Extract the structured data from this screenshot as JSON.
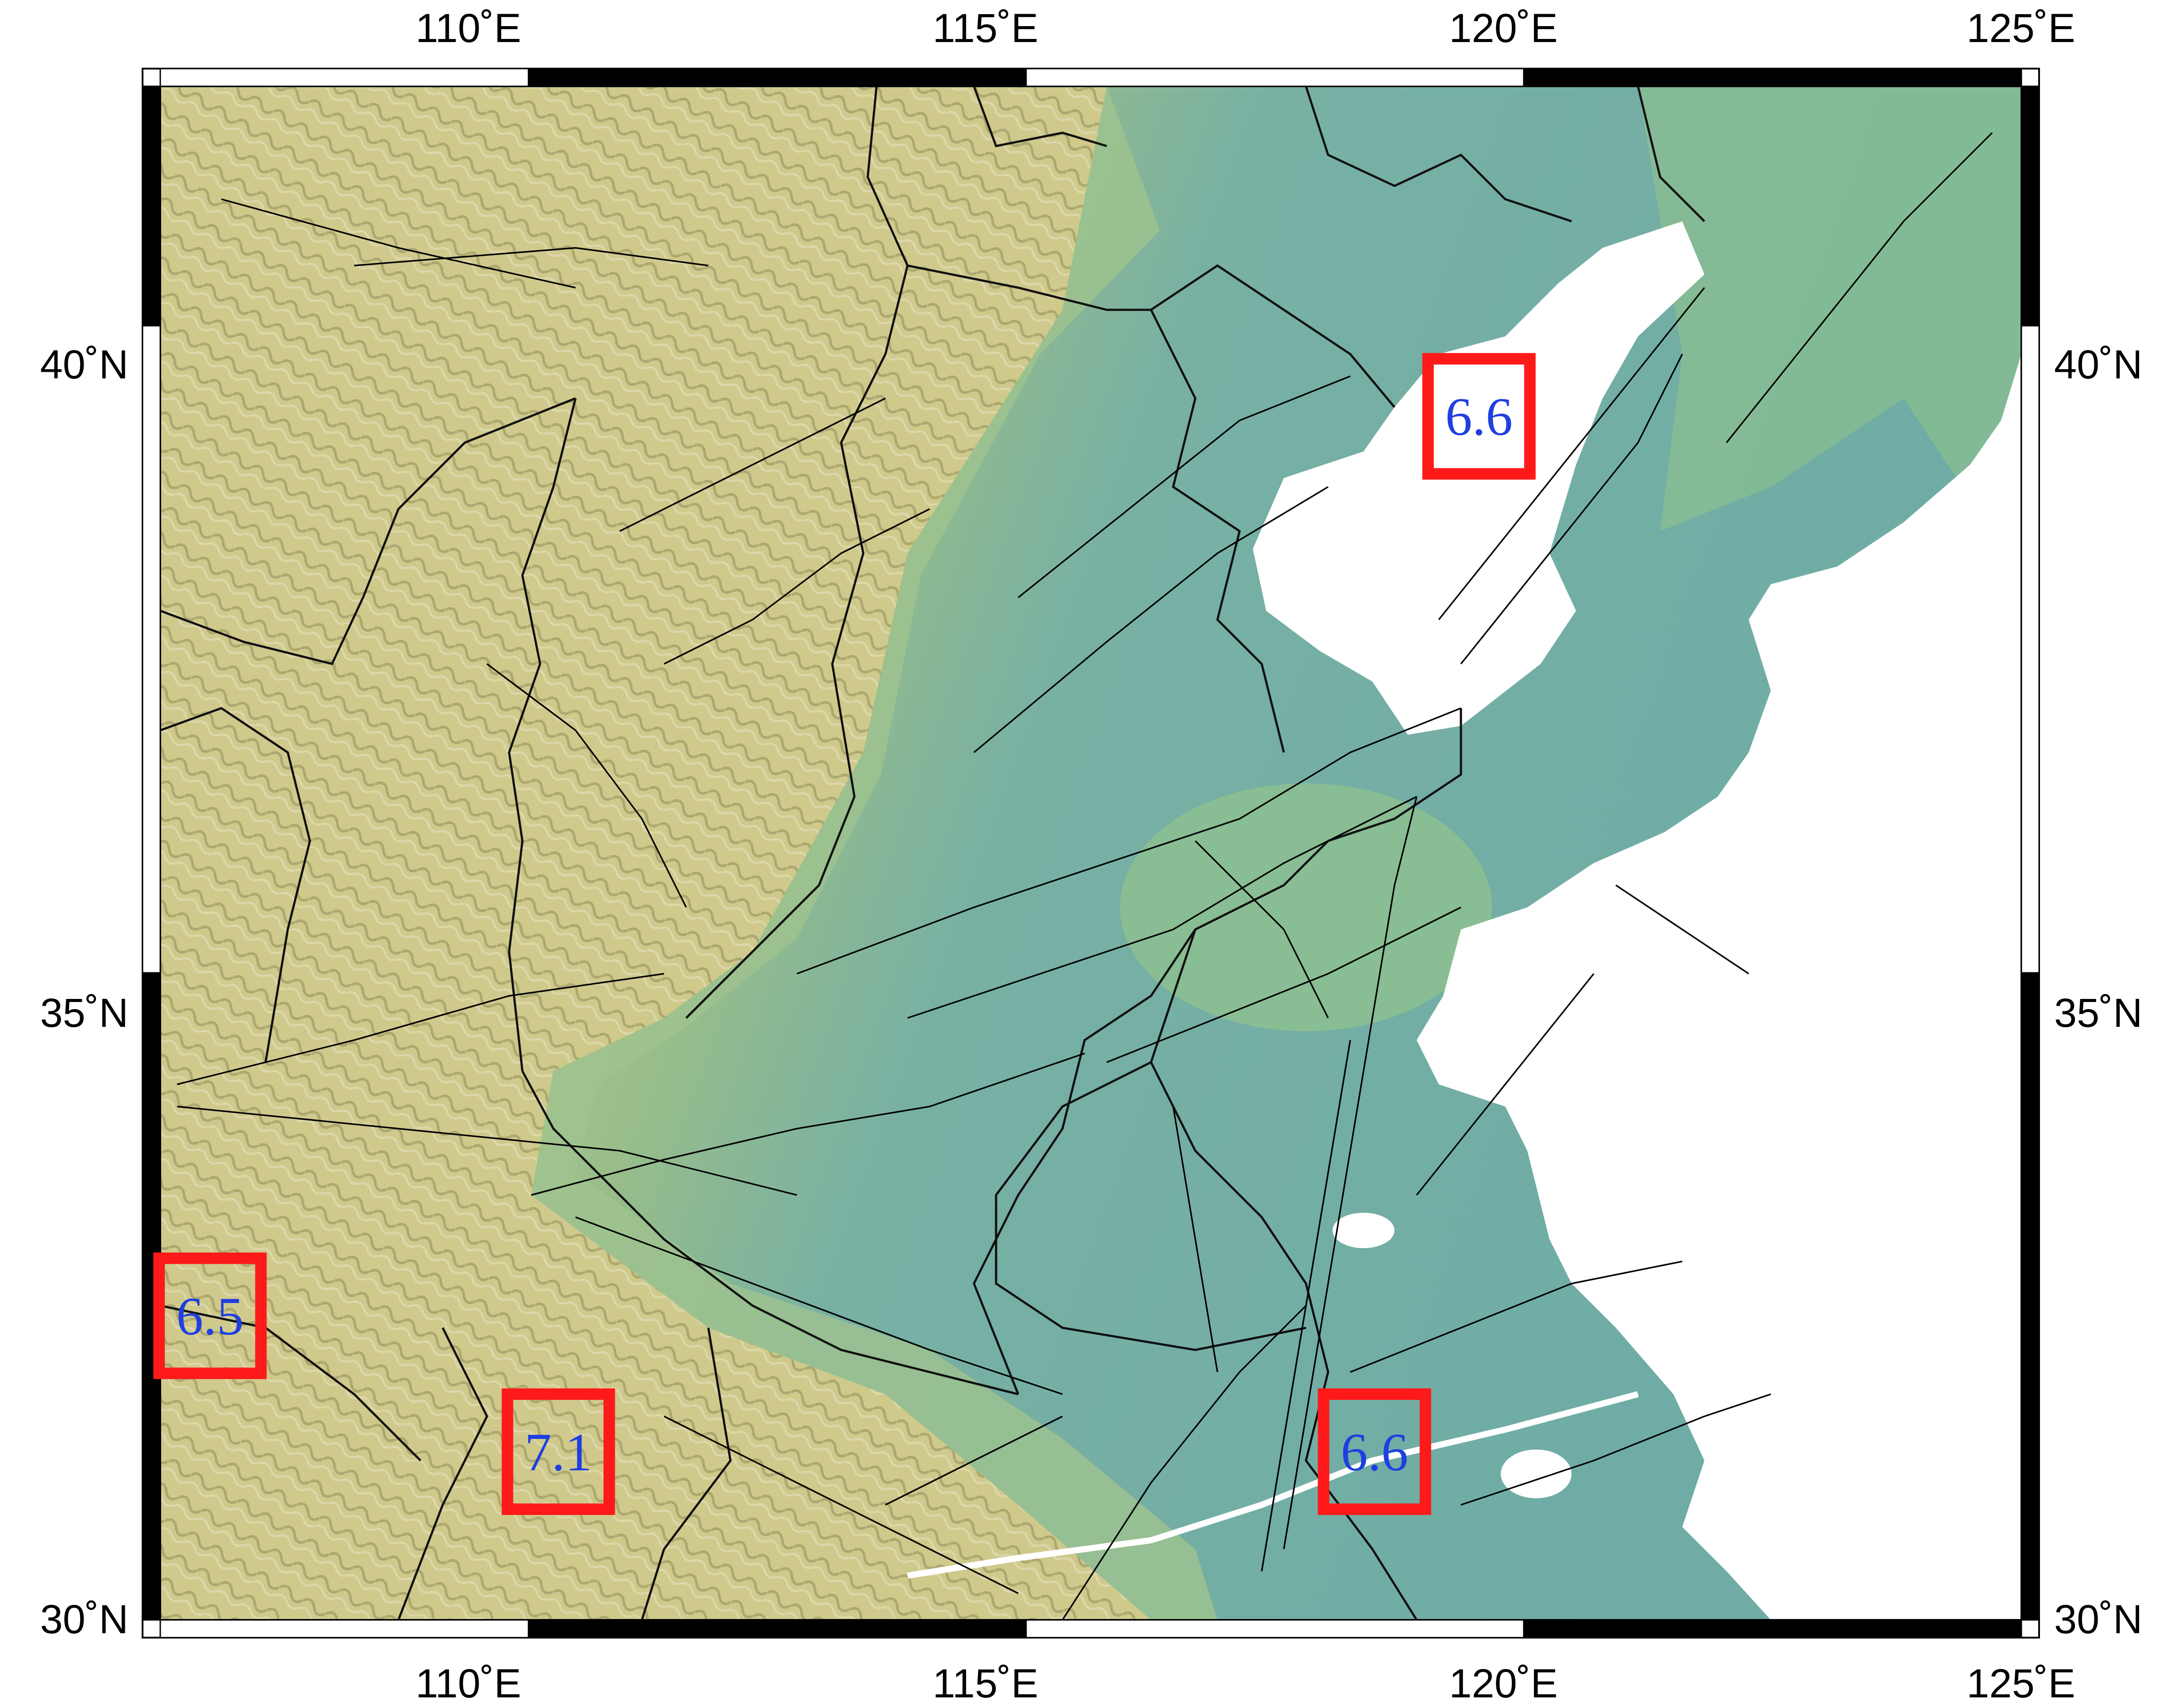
{
  "map": {
    "lon_range": [
      106.3,
      125
    ],
    "lat_range": [
      30,
      41.85
    ],
    "lon_ticks": [
      {
        "value": 110,
        "label": "110˚E"
      },
      {
        "value": 115,
        "label": "115˚E"
      },
      {
        "value": 120,
        "label": "120˚E"
      },
      {
        "value": 125,
        "label": "125˚E"
      }
    ],
    "lat_ticks": [
      {
        "value": 40,
        "label": "40˚N"
      },
      {
        "value": 35,
        "label": "35˚N"
      },
      {
        "value": 30,
        "label": "30˚N"
      }
    ],
    "earthquakes": [
      {
        "magnitude": "6.6",
        "lon": 119.55,
        "lat": 39.3
      },
      {
        "magnitude": "6.5",
        "lon": 106.8,
        "lat": 32.35
      },
      {
        "magnitude": "7.1",
        "lon": 110.3,
        "lat": 31.3
      },
      {
        "magnitude": "6.6",
        "lon": 118.5,
        "lat": 31.3
      }
    ],
    "colors": {
      "marker_box": "#ff1a1a",
      "magnitude_text": "#1f3fe0",
      "lowland": "#73aea8",
      "highland": "#c9c98a",
      "sea": "#ffffff",
      "fault_lines": "#000000"
    }
  }
}
